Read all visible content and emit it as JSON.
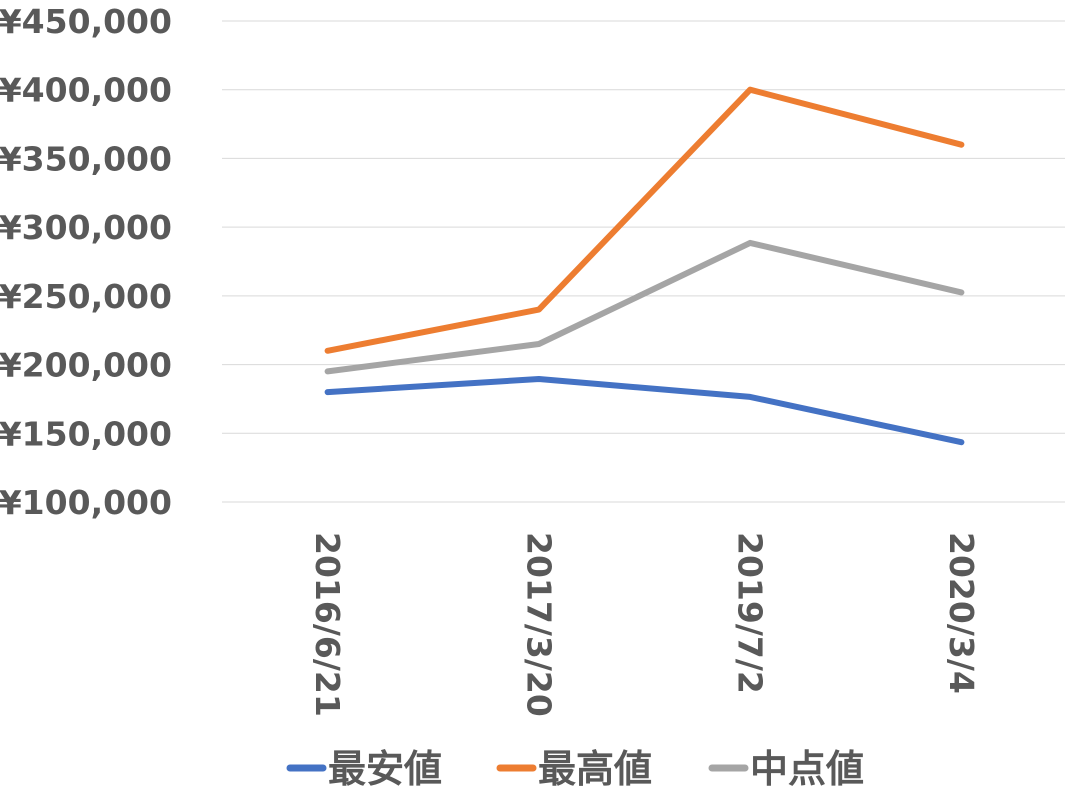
{
  "chart_data": {
    "type": "line",
    "title": "",
    "xlabel": "",
    "ylabel": "",
    "categories": [
      "2016/6/21",
      "2017/3/20",
      "2019/7/2",
      "2020/3/4"
    ],
    "ylim": [
      100000,
      450000
    ],
    "yticks": [
      100000,
      150000,
      200000,
      250000,
      300000,
      350000,
      400000,
      450000
    ],
    "ytick_labels": [
      "¥100,000",
      "¥150,000",
      "¥200,000",
      "¥250,000",
      "¥300,000",
      "¥350,000",
      "¥400,000",
      "¥450,000"
    ],
    "grid": true,
    "legend_position": "bottom",
    "series": [
      {
        "name": "最安値",
        "color": "#4472c4",
        "values": [
          180000,
          189500,
          176500,
          143500
        ]
      },
      {
        "name": "最高値",
        "color": "#ed7d31",
        "values": [
          210000,
          240000,
          400000,
          360000
        ]
      },
      {
        "name": "中点値",
        "color": "#a5a5a5",
        "values": [
          195000,
          215000,
          288500,
          252500
        ]
      }
    ]
  }
}
